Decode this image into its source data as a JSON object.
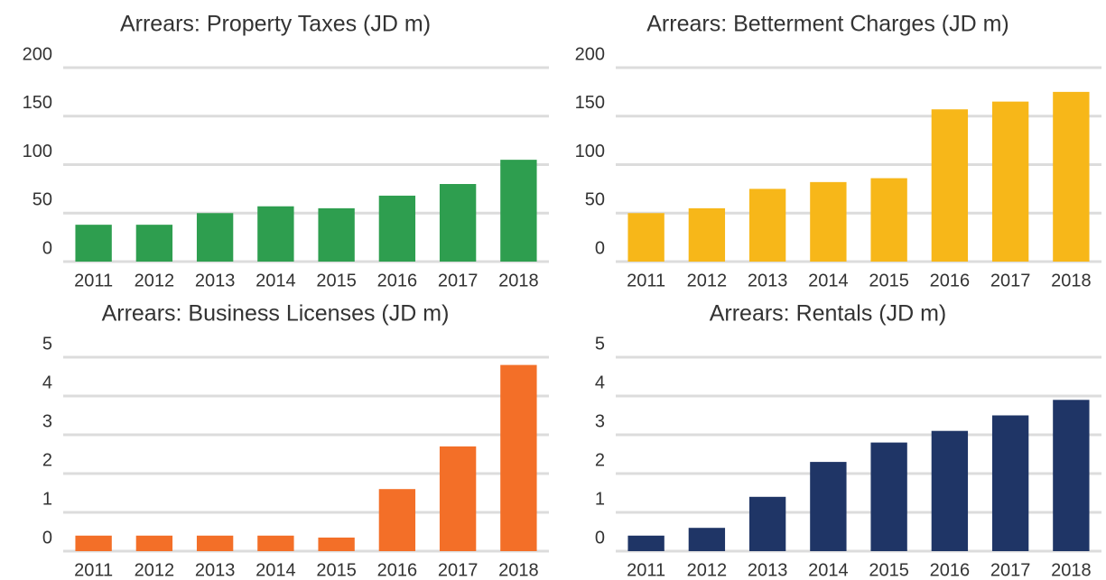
{
  "chart_data": [
    {
      "type": "bar",
      "title": "Arrears: Property Taxes (JD m)",
      "categories": [
        "2011",
        "2012",
        "2013",
        "2014",
        "2015",
        "2016",
        "2017",
        "2018"
      ],
      "values": [
        38,
        38,
        50,
        57,
        55,
        68,
        80,
        105
      ],
      "color": "#2e9e4f",
      "ylim": [
        0,
        200
      ],
      "yticks": [
        0,
        50,
        100,
        150,
        200
      ],
      "grid": true
    },
    {
      "type": "bar",
      "title": "Arrears: Betterment Charges (JD m)",
      "categories": [
        "2011",
        "2012",
        "2013",
        "2014",
        "2015",
        "2016",
        "2017",
        "2018"
      ],
      "values": [
        50,
        55,
        75,
        82,
        86,
        157,
        165,
        175
      ],
      "color": "#f7b719",
      "ylim": [
        0,
        200
      ],
      "yticks": [
        0,
        50,
        100,
        150,
        200
      ],
      "grid": true
    },
    {
      "type": "bar",
      "title": "Arrears: Business Licenses (JD m)",
      "categories": [
        "2011",
        "2012",
        "2013",
        "2014",
        "2015",
        "2016",
        "2017",
        "2018"
      ],
      "values": [
        0.4,
        0.4,
        0.4,
        0.4,
        0.35,
        1.6,
        2.7,
        4.8
      ],
      "color": "#f36f28",
      "ylim": [
        0,
        5
      ],
      "yticks": [
        0,
        1,
        2,
        3,
        4,
        5
      ],
      "grid": true
    },
    {
      "type": "bar",
      "title": "Arrears: Rentals (JD m)",
      "categories": [
        "2011",
        "2012",
        "2013",
        "2014",
        "2015",
        "2016",
        "2017",
        "2018"
      ],
      "values": [
        0.4,
        0.6,
        1.4,
        2.3,
        2.8,
        3.1,
        3.5,
        3.9
      ],
      "color": "#1f3566",
      "ylim": [
        0,
        5
      ],
      "yticks": [
        0,
        1,
        2,
        3,
        4,
        5
      ],
      "grid": true
    }
  ]
}
